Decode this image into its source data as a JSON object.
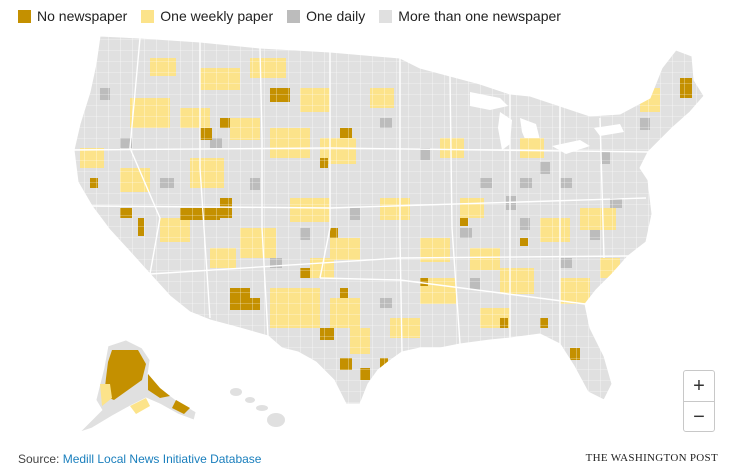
{
  "legend": {
    "items": [
      {
        "label": "No newspaper",
        "color": "#c49000"
      },
      {
        "label": "One weekly paper",
        "color": "#fce38a"
      },
      {
        "label": "One daily",
        "color": "#bcbcbc"
      },
      {
        "label": "More than one newspaper",
        "color": "#e0e0e0"
      }
    ]
  },
  "map": {
    "background_color": "#e0e0e0",
    "border_color": "#ffffff"
  },
  "zoom": {
    "in_label": "+",
    "out_label": "−"
  },
  "footer": {
    "source_prefix": "Source: ",
    "source_link": "Medill Local News Initiative Database",
    "credit": "THE WASHINGTON POST"
  }
}
